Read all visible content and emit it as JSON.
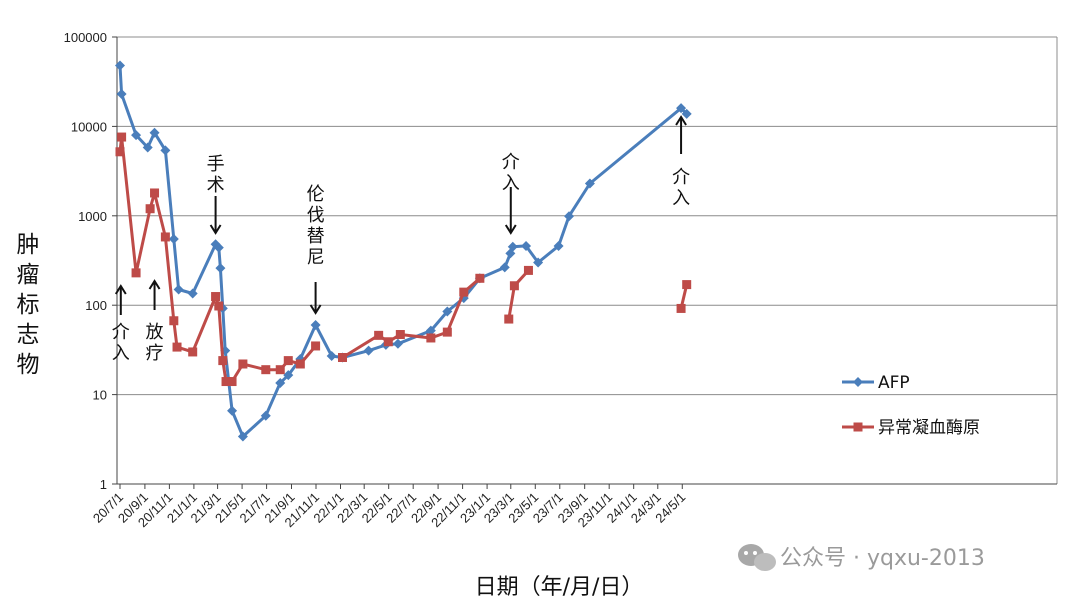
{
  "chart_data": {
    "type": "line",
    "y_scale": "log",
    "ylim": [
      1,
      100000
    ],
    "xlim": [
      "2020-07-01",
      "2024-05-20"
    ],
    "grid": true,
    "legend_position": "right",
    "ylabel": "肿瘤标志物",
    "xlabel": "日期（年/月/日）",
    "y_ticks": [
      "1",
      "10",
      "100",
      "1000",
      "10000",
      "100000"
    ],
    "x_ticks": [
      {
        "date": "2020-07-01",
        "label": "20/7/1"
      },
      {
        "date": "2020-09-01",
        "label": "20/9/1"
      },
      {
        "date": "2020-11-01",
        "label": "20/11/1"
      },
      {
        "date": "2021-01-01",
        "label": "21/1/1"
      },
      {
        "date": "2021-03-01",
        "label": "21/3/1"
      },
      {
        "date": "2021-05-01",
        "label": "21/5/1"
      },
      {
        "date": "2021-07-01",
        "label": "21/7/1"
      },
      {
        "date": "2021-09-01",
        "label": "21/9/1"
      },
      {
        "date": "2021-11-01",
        "label": "21/11/1"
      },
      {
        "date": "2022-01-01",
        "label": "22/1/1"
      },
      {
        "date": "2022-03-01",
        "label": "22/3/1"
      },
      {
        "date": "2022-05-01",
        "label": "22/5/1"
      },
      {
        "date": "2022-07-01",
        "label": "22/7/1"
      },
      {
        "date": "2022-09-01",
        "label": "22/9/1"
      },
      {
        "date": "2022-11-01",
        "label": "22/11/1"
      },
      {
        "date": "2023-01-01",
        "label": "23/1/1"
      },
      {
        "date": "2023-03-01",
        "label": "23/3/1"
      },
      {
        "date": "2023-05-01",
        "label": "23/5/1"
      },
      {
        "date": "2023-07-01",
        "label": "23/7/1"
      },
      {
        "date": "2023-09-01",
        "label": "23/9/1"
      },
      {
        "date": "2023-11-01",
        "label": "23/11/1"
      },
      {
        "date": "2024-01-01",
        "label": "24/1/1"
      },
      {
        "date": "2024-03-01",
        "label": "24/3/1"
      },
      {
        "date": "2024-05-01",
        "label": "24/5/1"
      }
    ],
    "series": [
      {
        "name": "AFP",
        "color": "#4a7ebb",
        "marker": "diamond",
        "segments": [
          [
            [
              "2020-07-01",
              48000
            ],
            [
              "2020-07-05",
              23000
            ],
            [
              "2020-08-10",
              8000
            ],
            [
              "2020-09-08",
              5800
            ],
            [
              "2020-09-25",
              8500
            ],
            [
              "2020-10-22",
              5400
            ],
            [
              "2020-11-12",
              550
            ],
            [
              "2020-11-24",
              150
            ],
            [
              "2020-12-29",
              135
            ],
            [
              "2021-02-24",
              480
            ],
            [
              "2021-03-04",
              440
            ],
            [
              "2021-03-08",
              260
            ],
            [
              "2021-03-14",
              92
            ],
            [
              "2021-03-20",
              31
            ],
            [
              "2021-04-06",
              6.6
            ],
            [
              "2021-05-03",
              3.4
            ],
            [
              "2021-06-29",
              5.8
            ],
            [
              "2021-08-04",
              13.5
            ],
            [
              "2021-08-24",
              16.5
            ],
            [
              "2021-09-23",
              25
            ],
            [
              "2021-10-31",
              60
            ],
            [
              "2021-12-10",
              27
            ],
            [
              "2022-01-06",
              26
            ],
            [
              "2022-03-12",
              31
            ],
            [
              "2022-04-24",
              36
            ],
            [
              "2022-05-24",
              37
            ],
            [
              "2022-08-14",
              52
            ],
            [
              "2022-09-24",
              85
            ],
            [
              "2022-11-04",
              120
            ],
            [
              "2022-12-14",
              200
            ],
            [
              "2023-02-14",
              265
            ],
            [
              "2023-02-28",
              380
            ],
            [
              "2023-03-06",
              450
            ],
            [
              "2023-04-08",
              460
            ],
            [
              "2023-05-08",
              300
            ],
            [
              "2023-06-28",
              460
            ],
            [
              "2023-07-24",
              990
            ],
            [
              "2023-09-14",
              2300
            ],
            [
              "2024-04-28",
              16000
            ],
            [
              "2024-05-12",
              13800
            ]
          ]
        ]
      },
      {
        "name": "异常凝血酶原",
        "color": "#be4b48",
        "marker": "square",
        "segments": [
          [
            [
              "2020-07-01",
              5200
            ],
            [
              "2020-07-05",
              7600
            ],
            [
              "2020-08-10",
              230
            ],
            [
              "2020-09-14",
              1200
            ],
            [
              "2020-09-25",
              1800
            ],
            [
              "2020-10-22",
              580
            ],
            [
              "2020-11-12",
              67
            ],
            [
              "2020-11-20",
              34
            ],
            [
              "2020-12-29",
              30
            ],
            [
              "2021-02-24",
              125
            ],
            [
              "2021-03-04",
              98
            ],
            [
              "2021-03-14",
              24
            ],
            [
              "2021-03-22",
              14
            ],
            [
              "2021-04-06",
              14
            ],
            [
              "2021-05-03",
              22
            ],
            [
              "2021-06-29",
              19
            ],
            [
              "2021-08-04",
              19
            ],
            [
              "2021-08-24",
              24
            ],
            [
              "2021-09-23",
              22
            ],
            [
              "2021-10-31",
              35
            ]
          ],
          [
            [
              "2022-01-06",
              26
            ],
            [
              "2022-04-06",
              46
            ],
            [
              "2022-04-30",
              39
            ],
            [
              "2022-05-30",
              47
            ],
            [
              "2022-08-14",
              43
            ],
            [
              "2022-09-24",
              50
            ],
            [
              "2022-11-04",
              140
            ],
            [
              "2022-12-14",
              200
            ]
          ],
          [
            [
              "2023-02-24",
              70
            ],
            [
              "2023-03-10",
              165
            ],
            [
              "2023-04-14",
              245
            ]
          ],
          [
            [
              "2024-04-28",
              92
            ],
            [
              "2024-05-12",
              170
            ]
          ]
        ]
      }
    ],
    "annotations": [
      {
        "text": "介入",
        "date": "2020-07-03",
        "arrow": "up"
      },
      {
        "text": "放疗",
        "date": "2020-09-30",
        "arrow": "up"
      },
      {
        "text": "手术",
        "date": "2021-02-24",
        "arrow": "down"
      },
      {
        "text": "伦伐替尼",
        "date": "2021-10-31",
        "arrow": "down"
      },
      {
        "text": "介入",
        "date": "2023-03-01",
        "arrow": "down"
      },
      {
        "text": "介入",
        "date": "2024-04-28",
        "arrow": "up"
      }
    ]
  },
  "watermark": {
    "icon": "wechat-icon",
    "text": "公众号 · yqxu-2013"
  }
}
